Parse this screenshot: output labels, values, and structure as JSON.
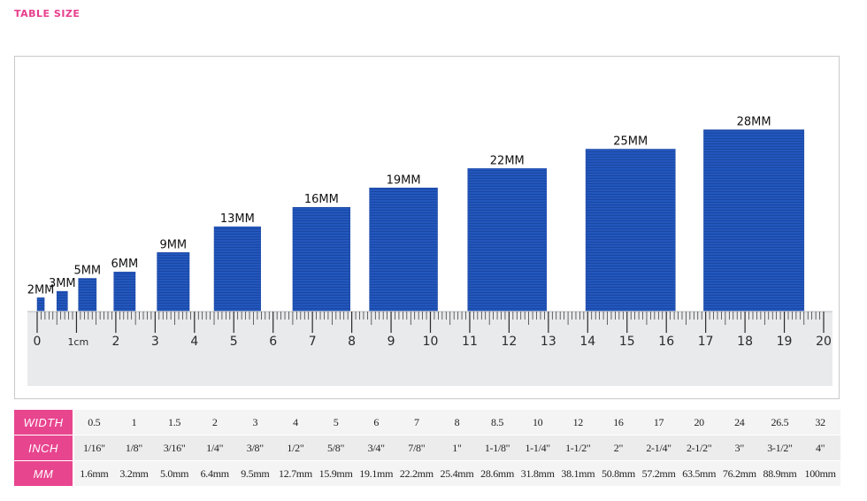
{
  "page": {
    "title": "TABLE SIZE"
  },
  "colors": {
    "title": "#e83e8c",
    "row_header": "#e8458f",
    "ribbon": "#2357bd",
    "ribbon_edge": "#1a47a3",
    "ruler": "#e9eaec",
    "ruler_ink": "#2a2a2a"
  },
  "figure": {
    "ribbons": [
      {
        "label": "2MM",
        "mm": 2
      },
      {
        "label": "3MM",
        "mm": 3
      },
      {
        "label": "5MM",
        "mm": 5
      },
      {
        "label": "6MM",
        "mm": 6
      },
      {
        "label": "9MM",
        "mm": 9
      },
      {
        "label": "13MM",
        "mm": 13
      },
      {
        "label": "16MM",
        "mm": 16
      },
      {
        "label": "19MM",
        "mm": 19
      },
      {
        "label": "22MM",
        "mm": 22
      },
      {
        "label": "25MM",
        "mm": 25
      },
      {
        "label": "28MM",
        "mm": 28
      }
    ],
    "ruler": {
      "labels": [
        "0",
        "1cm",
        "2",
        "3",
        "4",
        "5",
        "6",
        "7",
        "8",
        "9",
        "10",
        "11",
        "12",
        "13",
        "14",
        "15",
        "16",
        "17",
        "18",
        "19",
        "20"
      ],
      "max_cm": 20
    }
  },
  "table": {
    "rows": [
      {
        "header": "WIDTH",
        "cells": [
          "0.5",
          "1",
          "1.5",
          "2",
          "3",
          "4",
          "5",
          "6",
          "7",
          "8",
          "8.5",
          "10",
          "12",
          "16",
          "17",
          "20",
          "24",
          "26.5",
          "32"
        ]
      },
      {
        "header": "INCH",
        "cells": [
          "1/16\"",
          "1/8\"",
          "3/16\"",
          "1/4\"",
          "3/8\"",
          "1/2\"",
          "5/8\"",
          "3/4\"",
          "7/8\"",
          "1\"",
          "1-1/8\"",
          "1-1/4\"",
          "1-1/2\"",
          "2\"",
          "2-1/4\"",
          "2-1/2\"",
          "3\"",
          "3-1/2\"",
          "4\""
        ]
      },
      {
        "header": "MM",
        "cells": [
          "1.6mm",
          "3.2mm",
          "5.0mm",
          "6.4mm",
          "9.5mm",
          "12.7mm",
          "15.9mm",
          "19.1mm",
          "22.2mm",
          "25.4mm",
          "28.6mm",
          "31.8mm",
          "38.1mm",
          "50.8mm",
          "57.2mm",
          "63.5mm",
          "76.2mm",
          "88.9mm",
          "100mm"
        ]
      }
    ]
  }
}
